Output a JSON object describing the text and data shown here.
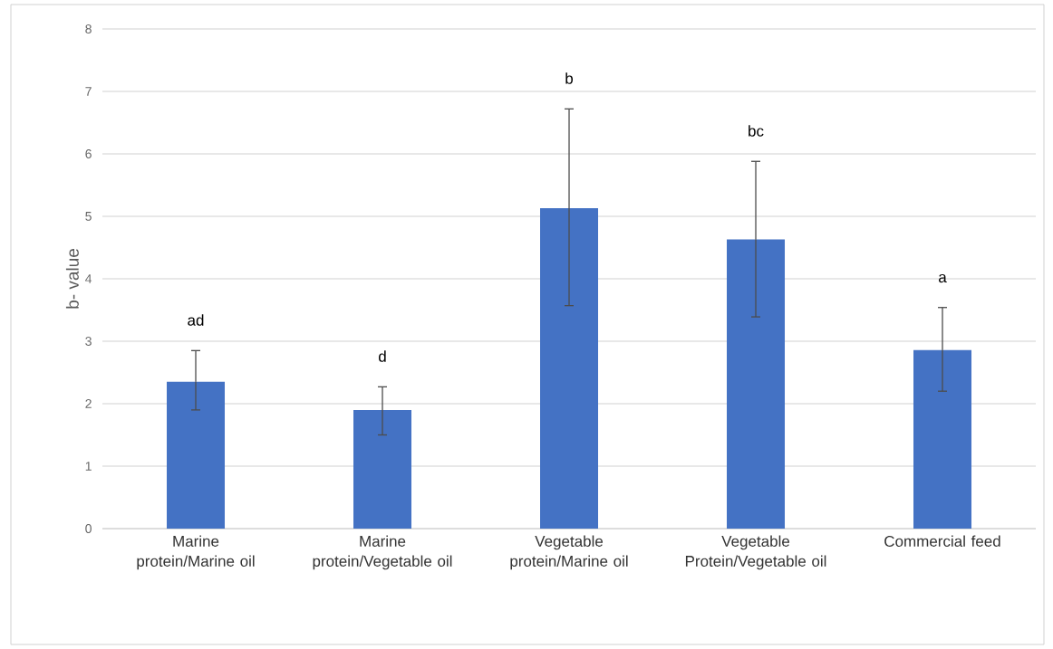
{
  "chart_data": {
    "type": "bar",
    "ylabel": "b- value",
    "categories": [
      "Marine protein/Marine oil",
      "Marine protein/Vegetable oil",
      "Vegetable protein/Marine oil",
      "Vegetable Protein/Vegetable oil",
      "Commercial feed"
    ],
    "values": [
      2.35,
      1.9,
      5.13,
      4.63,
      2.86
    ],
    "errors": [
      [
        1.9,
        2.85
      ],
      [
        1.5,
        2.27
      ],
      [
        3.57,
        6.72
      ],
      [
        3.39,
        5.88
      ],
      [
        2.2,
        3.54
      ]
    ],
    "color": "#4472c4",
    "ylim": [
      0,
      8
    ],
    "yticks": [
      0,
      1,
      2,
      3,
      4,
      5,
      6,
      7,
      8
    ],
    "grid": "y",
    "annotations": [
      "ad",
      "d",
      "b",
      "bc",
      "a"
    ]
  }
}
